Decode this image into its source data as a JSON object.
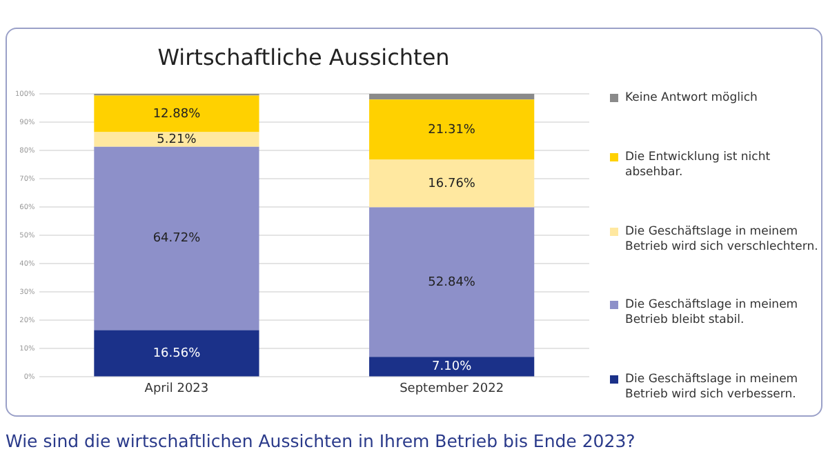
{
  "chart_data": {
    "type": "bar",
    "title": "Wirtschaftliche Aussichten",
    "categories": [
      "April 2023",
      "September 2022"
    ],
    "stacked": true,
    "series": [
      {
        "name": "Die Geschäftslage in meinem Betrieb wird sich verbessern.",
        "color": "#1b3189",
        "values": [
          16.56,
          7.1
        ],
        "value_labels": [
          "16.56%",
          "7.10%"
        ]
      },
      {
        "name": "Die Geschäftslage in meinem Betrieb bleibt stabil.",
        "color": "#8d90c9",
        "values": [
          64.72,
          52.84
        ],
        "value_labels": [
          "64.72%",
          "52.84%"
        ]
      },
      {
        "name": "Die Geschäftslage in meinem Betrieb wird sich verschlechtern.",
        "color": "#ffe8a0",
        "values": [
          5.21,
          16.76
        ],
        "value_labels": [
          "5.21%",
          "16.76%"
        ]
      },
      {
        "name": "Die Entwicklung ist nicht absehbar.",
        "color": "#ffd100",
        "values": [
          12.88,
          21.31
        ],
        "value_labels": [
          "12.88%",
          "21.31%"
        ]
      },
      {
        "name": "Keine Antwort möglich",
        "color": "#8a8a8a",
        "values": [
          0.6,
          2
        ],
        "value_labels": [
          null,
          null
        ]
      }
    ],
    "ylim": [
      0,
      100
    ],
    "yticks": [
      {
        "value": 0,
        "label": "0%"
      },
      {
        "value": 10,
        "label": "10%"
      },
      {
        "value": 20,
        "label": "20%"
      },
      {
        "value": 30,
        "label": "30%"
      },
      {
        "value": 40,
        "label": "40%"
      },
      {
        "value": 50,
        "label": "50%"
      },
      {
        "value": 60,
        "label": "60%"
      },
      {
        "value": 70,
        "label": "70%"
      },
      {
        "value": 80,
        "label": "80%"
      },
      {
        "value": 90,
        "label": "90%"
      },
      {
        "value": 100,
        "label": "100%"
      }
    ],
    "grid": "y",
    "legend": "right",
    "annotations": [
      "Wie sind die wirtschaftlichen Aussichten in Ihrem Betrieb bis Ende 2023?"
    ]
  }
}
